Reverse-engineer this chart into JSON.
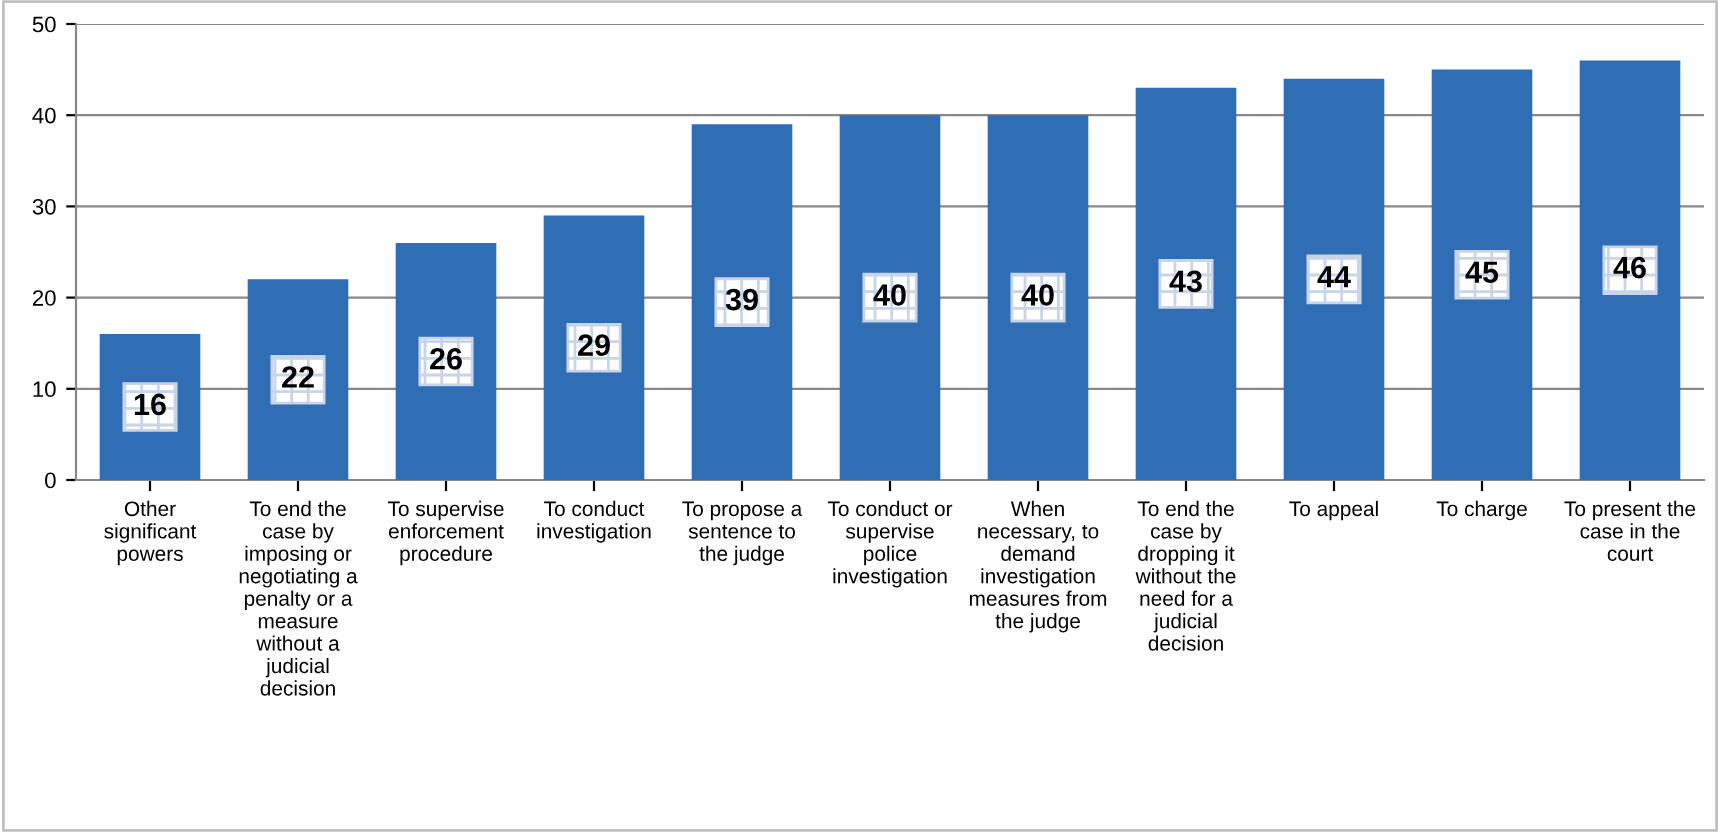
{
  "chart_data": {
    "type": "bar",
    "categories": [
      "Other\nsignificant\npowers",
      "To end the\ncase by\nimposing or\nnegotiating a\npenalty or a\nmeasure\nwithout a\njudicial\ndecision",
      "To supervise\nenforcement\nprocedure",
      "To conduct\ninvestigation",
      "To propose a\nsentence to\nthe judge",
      "To conduct or\nsupervise\npolice\ninvestigation",
      "When\nnecessary, to\ndemand\ninvestigation\nmeasures from\nthe judge",
      "To end the\ncase by\ndropping it\nwithout the\nneed for a\njudicial\ndecision",
      "To appeal",
      "To charge",
      "To present the\ncase in the\ncourt"
    ],
    "values": [
      16,
      22,
      26,
      29,
      39,
      40,
      40,
      43,
      44,
      45,
      46
    ],
    "color": "#2f6db5",
    "ylim": [
      0,
      50
    ],
    "yticks": [
      0,
      10,
      20,
      30,
      40,
      50
    ],
    "grid": "y",
    "data_labels": true
  }
}
